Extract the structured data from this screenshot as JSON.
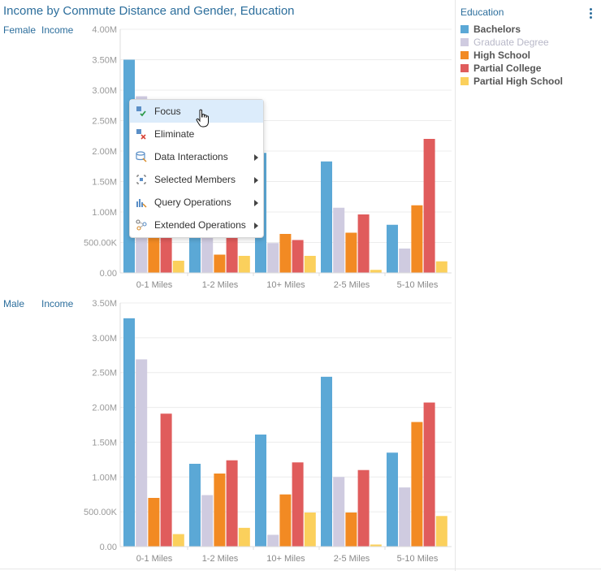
{
  "title": "Income by Commute Distance and Gender, Education",
  "legend": {
    "title": "Education",
    "items": [
      {
        "label": "Bachelors",
        "color": "#5ba8d6",
        "dim": false
      },
      {
        "label": "Graduate Degree",
        "color": "#cfcbe0",
        "dim": true
      },
      {
        "label": "High School",
        "color": "#f28a23",
        "dim": false
      },
      {
        "label": "Partial College",
        "color": "#e05c5c",
        "dim": false
      },
      {
        "label": "Partial High School",
        "color": "#fbd05c",
        "dim": false
      }
    ]
  },
  "rows": [
    {
      "gender": "Female",
      "measure": "Income"
    },
    {
      "gender": "Male",
      "measure": "Income"
    }
  ],
  "context_menu": {
    "items": [
      {
        "label": "Focus",
        "icon": "focus-icon",
        "submenu": false
      },
      {
        "label": "Eliminate",
        "icon": "eliminate-icon",
        "submenu": false
      },
      {
        "label": "Data Interactions",
        "icon": "data-interactions-icon",
        "submenu": true
      },
      {
        "label": "Selected Members",
        "icon": "selected-members-icon",
        "submenu": true
      },
      {
        "label": "Query Operations",
        "icon": "query-operations-icon",
        "submenu": true
      },
      {
        "label": "Extended Operations",
        "icon": "extended-operations-icon",
        "submenu": true
      }
    ]
  },
  "chart_data": [
    {
      "type": "bar",
      "title": "Female Income",
      "categories": [
        "0-1 Miles",
        "1-2 Miles",
        "10+ Miles",
        "2-5 Miles",
        "5-10 Miles"
      ],
      "ylim": [
        0,
        4000000
      ],
      "yticks": [
        "0.00",
        "500.00K",
        "1.00M",
        "1.50M",
        "2.00M",
        "2.50M",
        "3.00M",
        "3.50M",
        "4.00M"
      ],
      "series": [
        {
          "name": "Bachelors",
          "values": [
            3500000,
            900000,
            1970000,
            1830000,
            790000
          ]
        },
        {
          "name": "Graduate Degree",
          "values": [
            2900000,
            700000,
            490000,
            1070000,
            400000
          ]
        },
        {
          "name": "High School",
          "values": [
            700000,
            300000,
            640000,
            660000,
            1110000
          ]
        },
        {
          "name": "Partial College",
          "values": [
            650000,
            650000,
            540000,
            960000,
            2200000
          ]
        },
        {
          "name": "Partial High School",
          "values": [
            200000,
            280000,
            280000,
            50000,
            190000
          ]
        }
      ]
    },
    {
      "type": "bar",
      "title": "Male Income",
      "categories": [
        "0-1 Miles",
        "1-2 Miles",
        "10+ Miles",
        "2-5 Miles",
        "5-10 Miles"
      ],
      "ylim": [
        0,
        3500000
      ],
      "yticks": [
        "0.00",
        "500.00K",
        "1.00M",
        "1.50M",
        "2.00M",
        "2.50M",
        "3.00M",
        "3.50M"
      ],
      "series": [
        {
          "name": "Bachelors",
          "values": [
            3280000,
            1190000,
            1610000,
            2440000,
            1350000
          ]
        },
        {
          "name": "Graduate Degree",
          "values": [
            2690000,
            740000,
            170000,
            1000000,
            850000
          ]
        },
        {
          "name": "High School",
          "values": [
            700000,
            1050000,
            750000,
            490000,
            1790000
          ]
        },
        {
          "name": "Partial College",
          "values": [
            1910000,
            1240000,
            1210000,
            1100000,
            2070000
          ]
        },
        {
          "name": "Partial High School",
          "values": [
            180000,
            270000,
            490000,
            30000,
            440000
          ]
        }
      ]
    }
  ]
}
